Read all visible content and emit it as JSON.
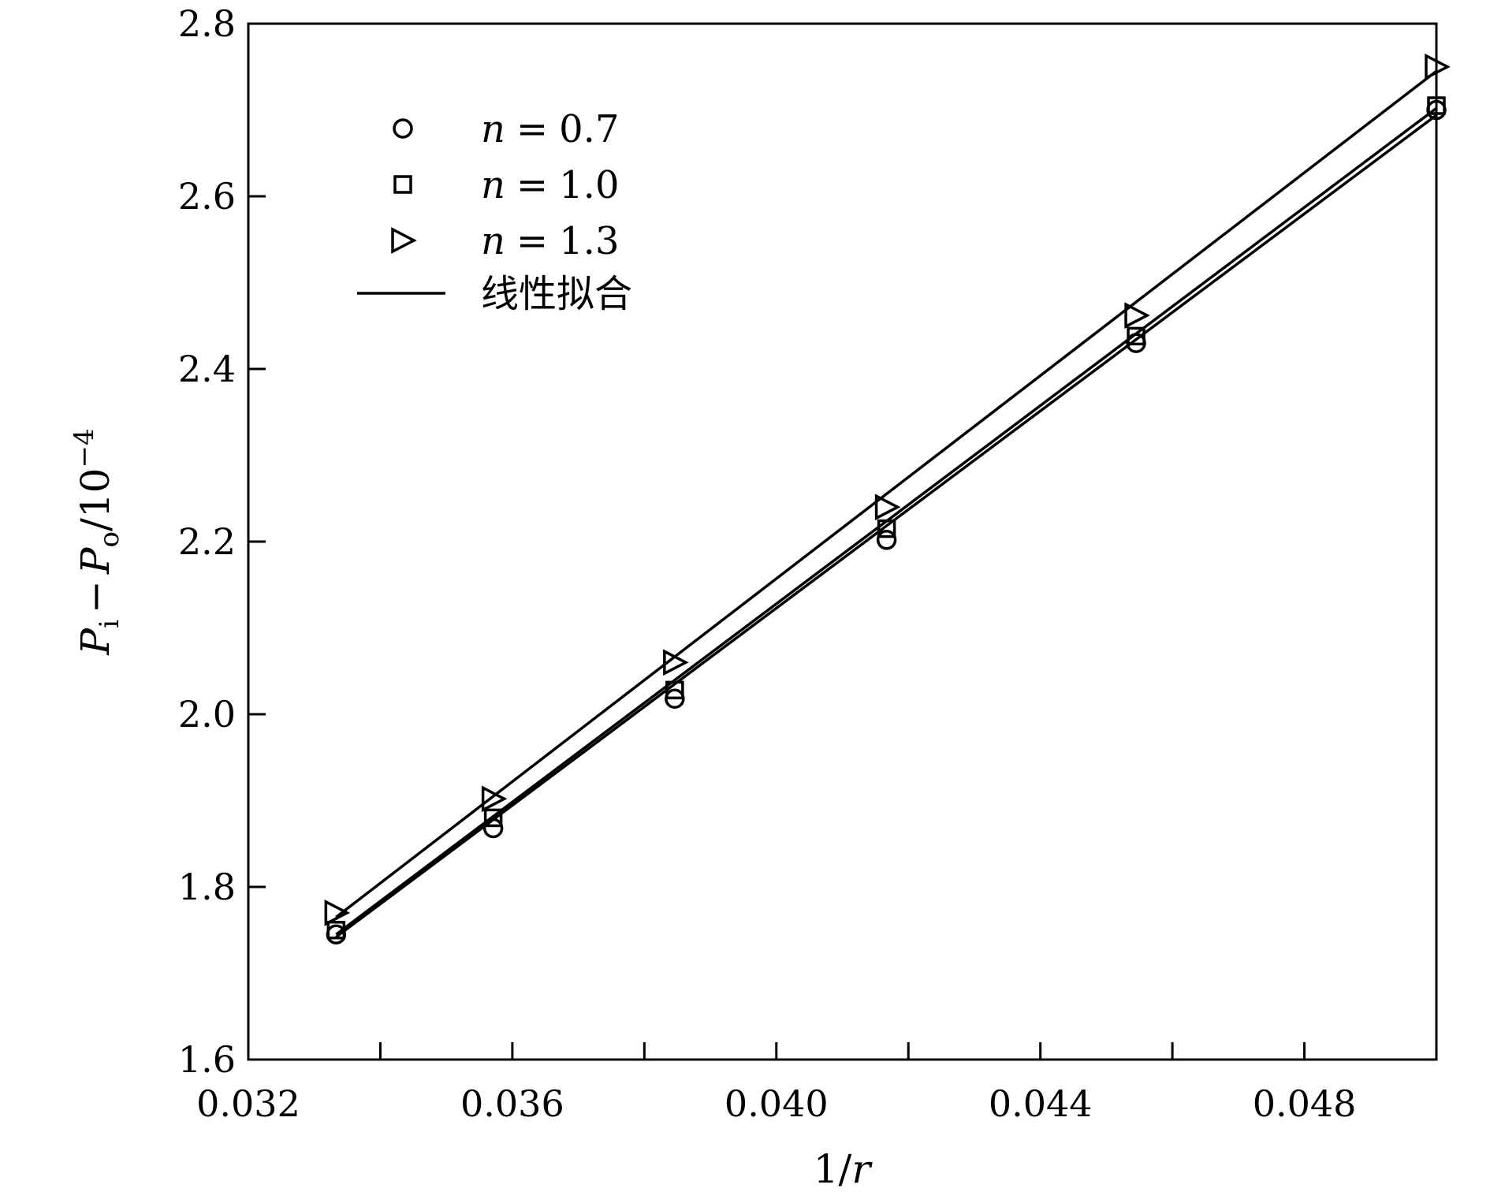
{
  "chart_data": {
    "type": "scatter",
    "xlabel_parts": {
      "num": "1",
      "slash": "/",
      "var": "r"
    },
    "ylabel_parts": {
      "p1": "P",
      "sub1": "i",
      "minus": "−",
      "p2": "P",
      "sub2": "o",
      "unit": "/10",
      "exp": "−4"
    },
    "xlim": [
      0.032,
      0.05
    ],
    "ylim": [
      1.6,
      2.8
    ],
    "xticks": [
      0.032,
      0.036,
      0.04,
      0.044,
      0.048
    ],
    "xtick_labels": [
      "0.032",
      "0.036",
      "0.040",
      "0.044",
      "0.048"
    ],
    "xminor_ticks": [
      0.034,
      0.038,
      0.042,
      0.046
    ],
    "yticks": [
      1.6,
      1.8,
      2.0,
      2.2,
      2.4,
      2.6,
      2.8
    ],
    "ytick_labels": [
      "1.6",
      "1.8",
      "2.0",
      "2.2",
      "2.4",
      "2.6",
      "2.8"
    ],
    "grid": false,
    "legend_position": "top-left",
    "x": [
      0.03333,
      0.03571,
      0.03846,
      0.04167,
      0.04545,
      0.05
    ],
    "series": [
      {
        "name": "n = 0.7",
        "var": "n",
        "eq": "=",
        "val": "0.7",
        "marker": "circle",
        "values": [
          1.745,
          1.868,
          2.018,
          2.202,
          2.43,
          2.7
        ],
        "fit": [
          1.742,
          2.694
        ]
      },
      {
        "name": "n = 1.0",
        "var": "n",
        "eq": "=",
        "val": "1.0",
        "marker": "square",
        "values": [
          1.75,
          1.88,
          2.028,
          2.215,
          2.438,
          2.705
        ],
        "fit": [
          1.745,
          2.702
        ]
      },
      {
        "name": "n = 1.3",
        "var": "n",
        "eq": "=",
        "val": "1.3",
        "marker": "triangle-right",
        "values": [
          1.77,
          1.902,
          2.06,
          2.24,
          2.462,
          2.75
        ],
        "fit": [
          1.765,
          2.745
        ]
      }
    ],
    "fit_legend_label": "线性拟合",
    "colors": {
      "ink": "#000000"
    }
  }
}
